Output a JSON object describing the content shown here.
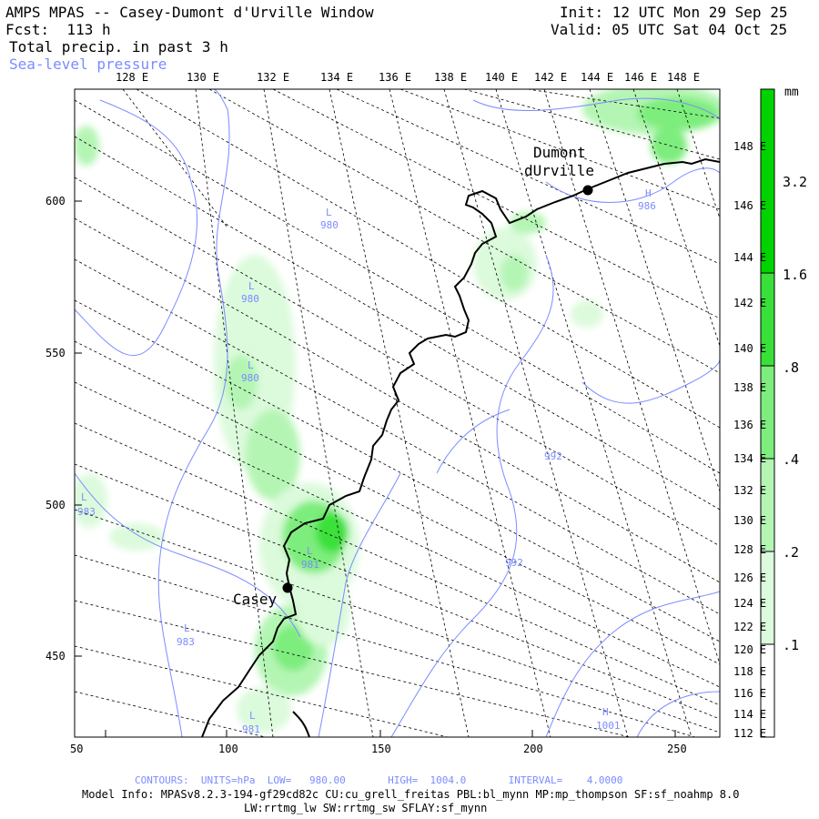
{
  "header": {
    "title": "AMPS MPAS -- Casey-Dumont d'Urville Window",
    "forecast": "Fcst:  113 h",
    "field": "Total precip. in past 3 h",
    "overlay": "Sea-level pressure",
    "init": "Init: 12 UTC Mon 29 Sep 25",
    "valid": "Valid: 05 UTC Sat 04 Oct 25"
  },
  "top_lon_labels": [
    "128 E",
    "130 E",
    "132 E",
    "134 E",
    "136 E",
    "138 E",
    "140 E",
    "142 E",
    "144 E",
    "146 E",
    "148 E"
  ],
  "right_lon_labels": [
    "148 E",
    "146 E",
    "144 E",
    "142 E",
    "140 E",
    "138 E",
    "136 E",
    "134 E",
    "132 E",
    "130 E",
    "128 E",
    "126 E",
    "124 E",
    "122 E",
    "120 E",
    "118 E",
    "116 E",
    "114 E",
    "112 E"
  ],
  "left_y_labels": [
    "600",
    "550",
    "500",
    "450"
  ],
  "bottom_x_labels": [
    "50",
    "100",
    "150",
    "200",
    "250"
  ],
  "places": {
    "dumont_line1": "Dumont",
    "dumont_line2": "dUrville",
    "casey": "Casey"
  },
  "pressure_labels": [
    {
      "sym": "L",
      "val": "980"
    },
    {
      "sym": "L",
      "val": "980"
    },
    {
      "sym": "L",
      "val": "980"
    },
    {
      "sym": "L",
      "val": "983"
    },
    {
      "sym": "L",
      "val": "981"
    },
    {
      "sym": "L",
      "val": "983"
    },
    {
      "sym": "L",
      "val": "981"
    },
    {
      "sym": "H",
      "val": "986"
    },
    {
      "sym": "H",
      "val": "1001"
    },
    {
      "sym": "",
      "val": "992"
    },
    {
      "sym": "",
      "val": "992"
    }
  ],
  "colorbar": {
    "unit": "mm",
    "levels": [
      "3.2",
      "1.6",
      ".8",
      ".4",
      ".2",
      ".1"
    ],
    "colors": [
      "#00d400",
      "#3ae03a",
      "#7ded7d",
      "#b4f5b4",
      "#dcfadc",
      "#f4fdf4",
      "#ffffff"
    ]
  },
  "footer": {
    "contours": "CONTOURS:  UNITS=hPa  LOW=   980.00       HIGH=  1004.0       INTERVAL=    4.0000",
    "model_info": "Model Info: MPASv8.2.3-194-gf29cd82c CU:cu_grell_freitas PBL:bl_mynn MP:mp_thompson SF:sf_noahmp 8.0",
    "physics": "LW:rrtmg_lw SW:rrtmg_sw SFLAY:sf_mynn"
  },
  "colors": {
    "slp_contour": "#7b8cff",
    "grid": "#000000",
    "coast": "#000000"
  }
}
